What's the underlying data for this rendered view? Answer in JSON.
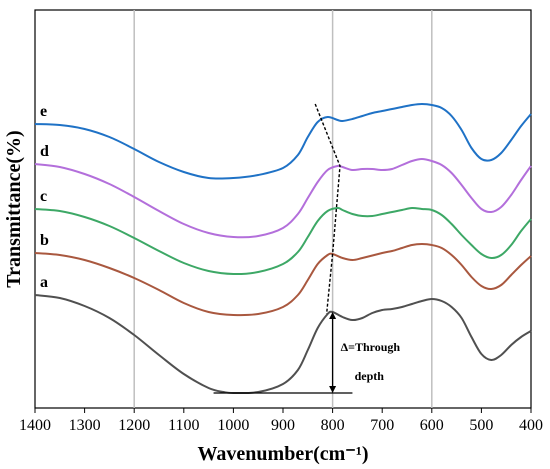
{
  "chart_data": {
    "type": "line",
    "title": "",
    "xlabel": "Wavenumber(cm⁻¹)",
    "ylabel": "Transmittance(%)",
    "xlim": [
      1400,
      400
    ],
    "x_reversed": true,
    "x_ticks": [
      1400,
      1300,
      1200,
      1100,
      1000,
      900,
      800,
      700,
      600,
      500,
      400
    ],
    "y_ticks": "none",
    "grid": "vertical lines at 1200, 800 and 600",
    "vertical_lines": [
      1200,
      800,
      600
    ],
    "series": [
      {
        "name": "a",
        "color": "#505050",
        "x": [
          1400,
          1350,
          1300,
          1250,
          1200,
          1150,
          1100,
          1050,
          1020,
          1000,
          950,
          900,
          870,
          850,
          830,
          810,
          800,
          780,
          760,
          740,
          720,
          700,
          680,
          660,
          640,
          620,
          600,
          580,
          560,
          540,
          520,
          500,
          480,
          460,
          440,
          420,
          400
        ],
        "values": [
          10.5,
          10.2,
          9.4,
          8.2,
          6.5,
          4.5,
          2.6,
          1.2,
          0.8,
          0.7,
          0.8,
          1.6,
          3.0,
          5.0,
          7.2,
          8.6,
          8.8,
          8.3,
          8.0,
          8.2,
          8.7,
          9.0,
          9.1,
          9.3,
          9.6,
          9.9,
          10.1,
          9.9,
          9.3,
          8.2,
          6.3,
          4.6,
          4.0,
          4.5,
          5.5,
          6.3,
          6.9
        ]
      },
      {
        "name": "b",
        "color": "#A9583F",
        "x": [
          1400,
          1350,
          1300,
          1250,
          1200,
          1150,
          1100,
          1050,
          1000,
          950,
          900,
          870,
          850,
          830,
          810,
          800,
          780,
          760,
          740,
          700,
          680,
          660,
          640,
          620,
          600,
          580,
          560,
          540,
          520,
          500,
          480,
          460,
          440,
          420,
          400
        ],
        "values": [
          14.7,
          14.5,
          14.0,
          13.2,
          12.2,
          11.0,
          9.7,
          8.8,
          8.5,
          8.6,
          9.3,
          10.5,
          12.0,
          13.6,
          14.5,
          14.6,
          14.2,
          14.0,
          14.2,
          14.7,
          14.9,
          15.2,
          15.5,
          15.6,
          15.5,
          15.2,
          14.5,
          13.5,
          12.3,
          11.4,
          11.1,
          11.5,
          12.5,
          13.5,
          14.4
        ]
      },
      {
        "name": "c",
        "color": "#3DA866",
        "x": [
          1400,
          1350,
          1300,
          1250,
          1200,
          1150,
          1100,
          1050,
          1000,
          950,
          900,
          870,
          850,
          830,
          810,
          790,
          780,
          760,
          740,
          720,
          700,
          680,
          660,
          640,
          620,
          600,
          580,
          560,
          540,
          520,
          500,
          480,
          460,
          440,
          420,
          400
        ],
        "values": [
          19.1,
          18.9,
          18.3,
          17.4,
          16.2,
          14.9,
          13.7,
          12.9,
          12.6,
          12.8,
          13.6,
          14.8,
          16.3,
          17.9,
          18.9,
          19.2,
          19.0,
          18.6,
          18.4,
          18.4,
          18.6,
          18.8,
          19.0,
          19.2,
          19.1,
          19.0,
          18.5,
          17.6,
          16.5,
          15.5,
          14.6,
          14.2,
          14.5,
          15.5,
          16.9,
          18.1
        ]
      },
      {
        "name": "d",
        "color": "#B36FDB",
        "x": [
          1400,
          1350,
          1300,
          1250,
          1200,
          1150,
          1100,
          1050,
          1000,
          950,
          900,
          870,
          850,
          830,
          810,
          790,
          780,
          760,
          740,
          720,
          700,
          680,
          660,
          640,
          620,
          600,
          580,
          560,
          540,
          520,
          500,
          480,
          460,
          440,
          420,
          400
        ],
        "values": [
          23.6,
          23.3,
          22.6,
          21.6,
          20.3,
          18.9,
          17.6,
          16.7,
          16.3,
          16.4,
          17.2,
          18.6,
          20.2,
          21.8,
          23.0,
          23.4,
          23.3,
          23.0,
          23.1,
          23.1,
          23.0,
          23.1,
          23.5,
          23.9,
          24.1,
          23.9,
          23.5,
          22.7,
          21.5,
          20.2,
          19.1,
          18.8,
          19.3,
          20.5,
          22.0,
          23.4
        ]
      },
      {
        "name": "e",
        "color": "#1F72C6",
        "x": [
          1400,
          1350,
          1300,
          1250,
          1200,
          1150,
          1100,
          1050,
          1000,
          950,
          900,
          870,
          850,
          830,
          810,
          790,
          780,
          760,
          740,
          720,
          700,
          680,
          660,
          640,
          620,
          600,
          580,
          560,
          540,
          520,
          500,
          480,
          460,
          440,
          420,
          400
        ],
        "values": [
          27.6,
          27.5,
          27.1,
          26.3,
          25.1,
          23.8,
          22.8,
          22.2,
          22.2,
          22.5,
          23.2,
          24.5,
          26.3,
          27.8,
          28.3,
          28.0,
          27.9,
          28.1,
          28.4,
          28.7,
          28.9,
          29.1,
          29.3,
          29.5,
          29.6,
          29.5,
          29.2,
          28.4,
          27.0,
          25.2,
          24.1,
          24.0,
          24.7,
          26.0,
          27.4,
          28.6
        ]
      }
    ],
    "trend_line_points": [
      {
        "x": 835,
        "y": 29.6
      },
      {
        "x": 785,
        "y": 23.4
      },
      {
        "x": 800,
        "y": 14.6
      },
      {
        "x": 812,
        "y": 8.6
      }
    ],
    "annotation": {
      "text_line1": "Δ=Through",
      "text_line2": "depth",
      "baseline_x": [
        1040,
        760
      ],
      "baseline_y": 0.7,
      "arrow_x": 800,
      "arrow_top_y": 8.8
    }
  }
}
